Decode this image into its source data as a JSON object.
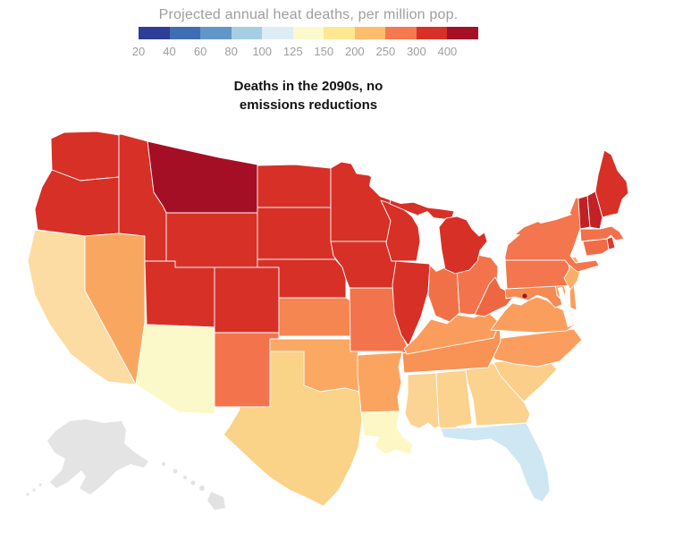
{
  "header": {
    "title": "Projected annual heat deaths, per million pop.",
    "subtitle_line1": "Deaths in the 2090s, no",
    "subtitle_line2": "emissions reductions"
  },
  "legend": {
    "stops": [
      {
        "label": "20",
        "color": "#2e3d96"
      },
      {
        "label": "40",
        "color": "#3e6db4"
      },
      {
        "label": "60",
        "color": "#6097c8"
      },
      {
        "label": "80",
        "color": "#a6cee3"
      },
      {
        "label": "100",
        "color": "#dcedf5"
      },
      {
        "label": "125",
        "color": "#fcf9cd"
      },
      {
        "label": "150",
        "color": "#fee792"
      },
      {
        "label": "200",
        "color": "#fdbd6d"
      },
      {
        "label": "250",
        "color": "#f4794f"
      },
      {
        "label": "300",
        "color": "#d73027"
      },
      {
        "label": "400",
        "color": "#a50f26"
      }
    ]
  },
  "chart_data": {
    "type": "choropleth_map",
    "title": "Projected annual heat deaths, per million pop.",
    "scenario": "Deaths in the 2090s, no emissions reductions",
    "unit": "deaths per million population (estimated from color scale)",
    "scale_breaks": [
      20,
      40,
      60,
      80,
      100,
      125,
      150,
      200,
      250,
      300,
      400
    ],
    "no_data_color": "#e4e4e4",
    "states": [
      {
        "id": "WA",
        "name": "Washington",
        "value": 320,
        "color": "#d73027"
      },
      {
        "id": "OR",
        "name": "Oregon",
        "value": 320,
        "color": "#d73027"
      },
      {
        "id": "CA",
        "name": "California",
        "value": 165,
        "color": "#fcdca3"
      },
      {
        "id": "NV",
        "name": "Nevada",
        "value": 230,
        "color": "#f9a760"
      },
      {
        "id": "ID",
        "name": "Idaho",
        "value": 330,
        "color": "#d73027"
      },
      {
        "id": "MT",
        "name": "Montana",
        "value": 430,
        "color": "#a50f26"
      },
      {
        "id": "WY",
        "name": "Wyoming",
        "value": 330,
        "color": "#d73027"
      },
      {
        "id": "UT",
        "name": "Utah",
        "value": 310,
        "color": "#d73027"
      },
      {
        "id": "CO",
        "name": "Colorado",
        "value": 320,
        "color": "#d73027"
      },
      {
        "id": "AZ",
        "name": "Arizona",
        "value": 130,
        "color": "#fbf8c9"
      },
      {
        "id": "NM",
        "name": "New Mexico",
        "value": 270,
        "color": "#f3744c"
      },
      {
        "id": "ND",
        "name": "North Dakota",
        "value": 330,
        "color": "#d73027"
      },
      {
        "id": "SD",
        "name": "South Dakota",
        "value": 330,
        "color": "#d73027"
      },
      {
        "id": "NE",
        "name": "Nebraska",
        "value": 310,
        "color": "#d73027"
      },
      {
        "id": "KS",
        "name": "Kansas",
        "value": 255,
        "color": "#f58551"
      },
      {
        "id": "OK",
        "name": "Oklahoma",
        "value": 215,
        "color": "#fba863"
      },
      {
        "id": "TX",
        "name": "Texas",
        "value": 180,
        "color": "#fad288"
      },
      {
        "id": "MN",
        "name": "Minnesota",
        "value": 330,
        "color": "#d73027"
      },
      {
        "id": "IA",
        "name": "Iowa",
        "value": 320,
        "color": "#d73027"
      },
      {
        "id": "MO",
        "name": "Missouri",
        "value": 270,
        "color": "#f3744c"
      },
      {
        "id": "AR",
        "name": "Arkansas",
        "value": 220,
        "color": "#fba45f"
      },
      {
        "id": "LA",
        "name": "Louisiana",
        "value": 140,
        "color": "#fdf7c5"
      },
      {
        "id": "WI",
        "name": "Wisconsin",
        "value": 330,
        "color": "#d73027"
      },
      {
        "id": "IL",
        "name": "Illinois",
        "value": 310,
        "color": "#d73027"
      },
      {
        "id": "MS",
        "name": "Mississippi",
        "value": 185,
        "color": "#fbd392"
      },
      {
        "id": "AL",
        "name": "Alabama",
        "value": 180,
        "color": "#fbd28e"
      },
      {
        "id": "GA",
        "name": "Georgia",
        "value": 180,
        "color": "#fbd28e"
      },
      {
        "id": "FL",
        "name": "Florida",
        "value": 100,
        "color": "#cfe7f2"
      },
      {
        "id": "SC",
        "name": "South Carolina",
        "value": 190,
        "color": "#fbcf8a"
      },
      {
        "id": "NC",
        "name": "North Carolina",
        "value": 225,
        "color": "#fa9d5e"
      },
      {
        "id": "TN",
        "name": "Tennessee",
        "value": 240,
        "color": "#f89255"
      },
      {
        "id": "KY",
        "name": "Kentucky",
        "value": 235,
        "color": "#fa9d5c"
      },
      {
        "id": "IN",
        "name": "Indiana",
        "value": 275,
        "color": "#f27048"
      },
      {
        "id": "OH",
        "name": "Ohio",
        "value": 270,
        "color": "#f3744c"
      },
      {
        "id": "MI",
        "name": "Michigan",
        "value": 320,
        "color": "#d73027"
      },
      {
        "id": "WV",
        "name": "West Virginia",
        "value": 285,
        "color": "#ed6742"
      },
      {
        "id": "VA",
        "name": "Virginia",
        "value": 225,
        "color": "#fa9e5e"
      },
      {
        "id": "MD",
        "name": "Maryland",
        "value": 250,
        "color": "#f58a52"
      },
      {
        "id": "DE",
        "name": "Delaware",
        "value": 220,
        "color": "#faa062"
      },
      {
        "id": "PA",
        "name": "Pennsylvania",
        "value": 265,
        "color": "#f3764e"
      },
      {
        "id": "NJ",
        "name": "New Jersey",
        "value": 205,
        "color": "#fcae66"
      },
      {
        "id": "NY",
        "name": "New York",
        "value": 265,
        "color": "#f3764e"
      },
      {
        "id": "CT",
        "name": "Connecticut",
        "value": 280,
        "color": "#ef6c47"
      },
      {
        "id": "RI",
        "name": "Rhode Island",
        "value": 300,
        "color": "#dc3b2b"
      },
      {
        "id": "MA",
        "name": "Massachusetts",
        "value": 270,
        "color": "#f2714b"
      },
      {
        "id": "VT",
        "name": "Vermont",
        "value": 380,
        "color": "#bf2126"
      },
      {
        "id": "NH",
        "name": "New Hampshire",
        "value": 380,
        "color": "#c02227"
      },
      {
        "id": "ME",
        "name": "Maine",
        "value": 330,
        "color": "#d73027"
      },
      {
        "id": "DC",
        "name": "Washington D.C.",
        "value": 420,
        "color": "#9b1127"
      },
      {
        "id": "AK",
        "name": "Alaska",
        "value": null,
        "color": "#e4e4e4"
      },
      {
        "id": "HI",
        "name": "Hawaii",
        "value": null,
        "color": "#e2e2e2"
      }
    ]
  }
}
